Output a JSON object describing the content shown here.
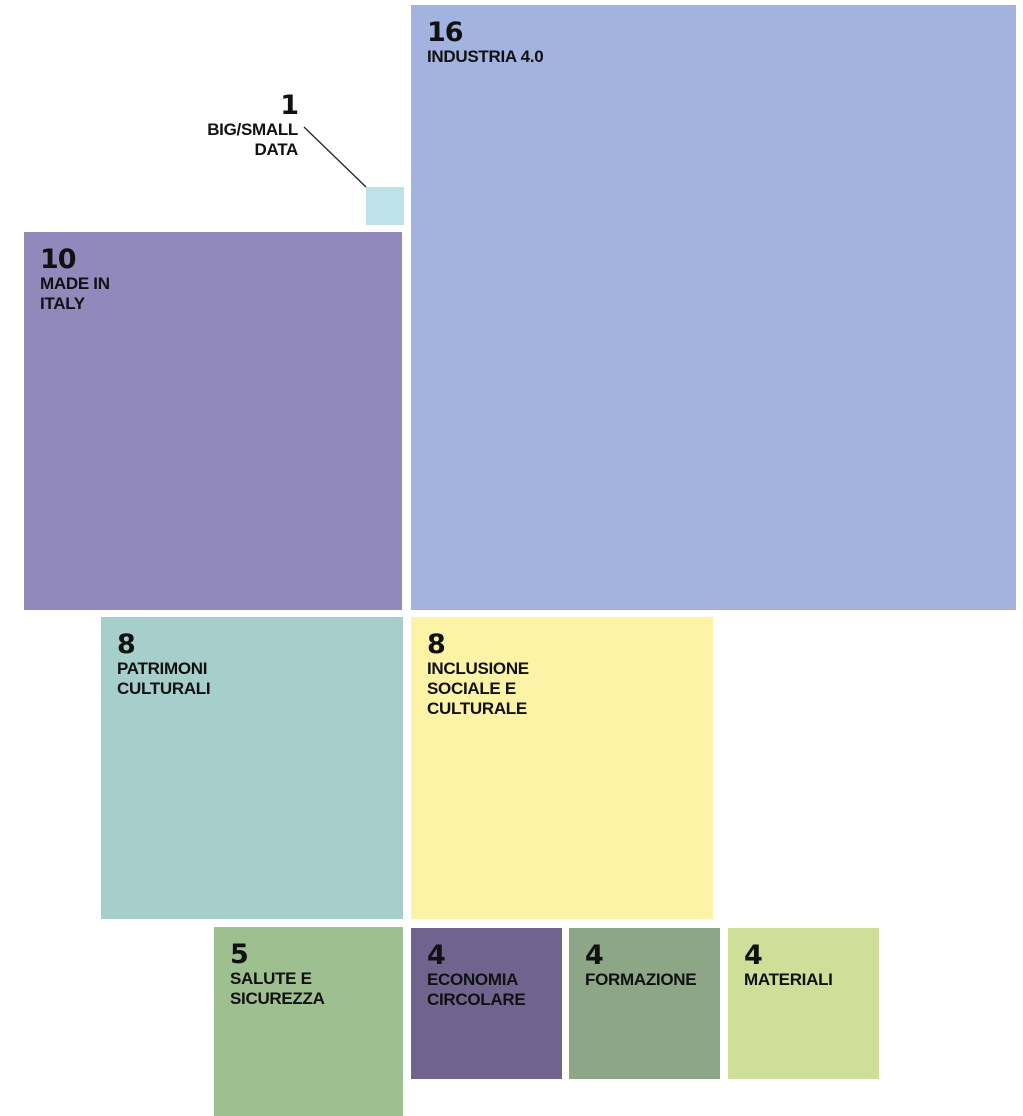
{
  "chart_data": {
    "type": "squares",
    "categories": [
      "INDUSTRIA 4.0",
      "BIG/SMALL DATA",
      "MADE IN ITALY",
      "PATRIMONI CULTURALI",
      "INCLUSIONE SOCIALE E CULTURALE",
      "SALUTE E SICUREZZA",
      "ECONOMIA CIRCOLARE",
      "FORMAZIONE",
      "MATERIALI"
    ],
    "values": [
      16,
      1,
      10,
      8,
      8,
      5,
      4,
      4,
      4
    ],
    "colors": [
      "#a1b3de",
      "#bde3e8",
      "#9188bb",
      "#a6cfcc",
      "#fcf3a6",
      "#9ebf8f",
      "#70648f",
      "#8ca686",
      "#cfdf9a"
    ]
  }
}
